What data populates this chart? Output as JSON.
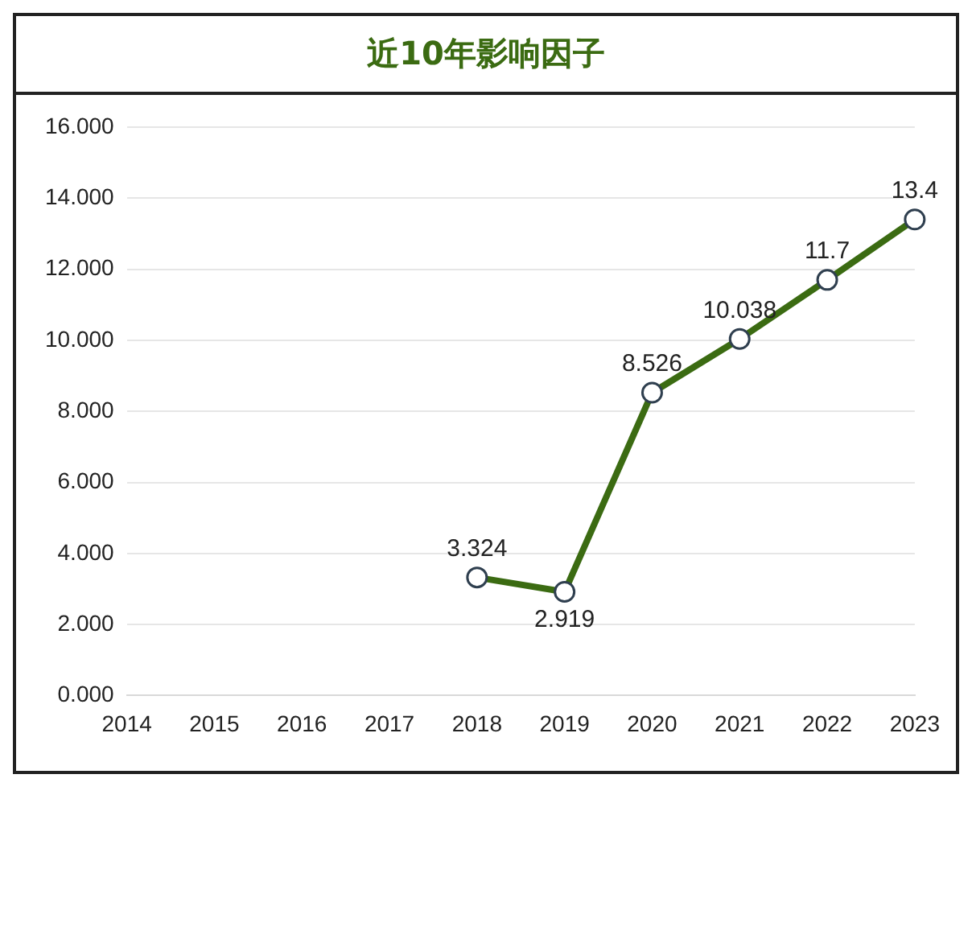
{
  "chart_data": {
    "type": "line",
    "title": "近10年影响因子",
    "categories": [
      "2014",
      "2015",
      "2016",
      "2017",
      "2018",
      "2019",
      "2020",
      "2021",
      "2022",
      "2023"
    ],
    "series": [
      {
        "color": "#3b6b12",
        "values": [
          null,
          null,
          null,
          null,
          3.324,
          2.919,
          8.526,
          10.038,
          11.7,
          13.4
        ]
      }
    ],
    "ylim": [
      0,
      16
    ],
    "yticks": [
      {
        "value": 0,
        "label": "0.000"
      },
      {
        "value": 2,
        "label": "2.000"
      },
      {
        "value": 4,
        "label": "4.000"
      },
      {
        "value": 6,
        "label": "6.000"
      },
      {
        "value": 8,
        "label": "8.000"
      },
      {
        "value": 10,
        "label": "10.000"
      },
      {
        "value": 12,
        "label": "12.000"
      },
      {
        "value": 14,
        "label": "14.000"
      },
      {
        "value": 16,
        "label": "16.000"
      }
    ],
    "grid": "y",
    "marker": "circle",
    "line_style": "solid",
    "data_labels": true,
    "legend": false
  }
}
